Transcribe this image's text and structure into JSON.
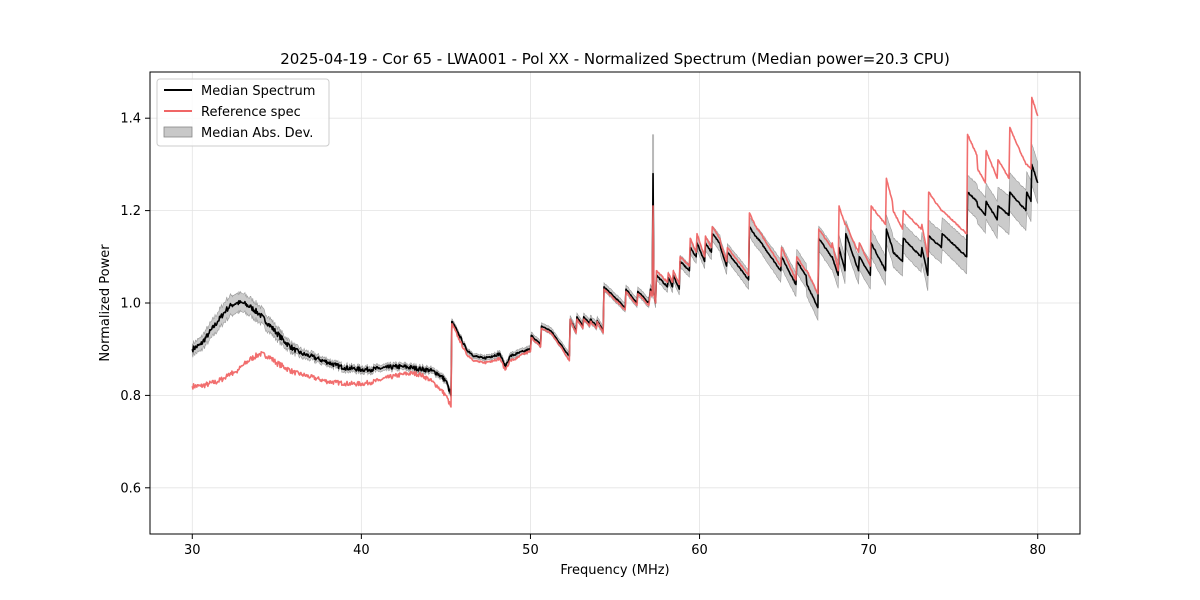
{
  "chart_data": {
    "type": "line",
    "title": "2025-04-19 - Cor 65 - LWA001 - Pol XX - Normalized Spectrum (Median power=20.3 CPU)",
    "xlabel": "Frequency (MHz)",
    "ylabel": "Normalized Power",
    "xlim": [
      27.5,
      82.5
    ],
    "ylim": [
      0.5,
      1.5
    ],
    "xticks": [
      30,
      40,
      50,
      60,
      70,
      80
    ],
    "yticks": [
      0.6,
      0.8,
      1.0,
      1.2,
      1.4
    ],
    "xtick_labels": [
      "30",
      "40",
      "50",
      "60",
      "70",
      "80"
    ],
    "ytick_labels": [
      "0.6",
      "0.8",
      "1.0",
      "1.2",
      "1.4"
    ],
    "grid": true,
    "legend": {
      "position": "top-left",
      "entries": [
        {
          "label": "Median Spectrum",
          "color": "#000000",
          "kind": "line"
        },
        {
          "label": "Reference spec",
          "color": "#f06666",
          "kind": "line"
        },
        {
          "label": "Median Abs. Dev.",
          "color": "#c8c8c8",
          "kind": "band"
        }
      ]
    },
    "series": [
      {
        "name": "Median Spectrum",
        "color": "#000000",
        "x": [
          30.0,
          30.5,
          31.0,
          31.5,
          32.0,
          32.3,
          32.6,
          33.0,
          33.5,
          34.0,
          34.5,
          35.0,
          35.5,
          36.0,
          36.5,
          37.0,
          37.5,
          38.0,
          38.5,
          39.0,
          39.5,
          40.0,
          40.5,
          41.0,
          41.5,
          42.0,
          42.5,
          43.0,
          43.5,
          44.0,
          44.5,
          45.0,
          45.3,
          45.35,
          45.8,
          46.2,
          46.7,
          47.2,
          47.7,
          48.2,
          48.5,
          48.8,
          49.2,
          49.6,
          50.0,
          50.05,
          50.6,
          50.65,
          51.2,
          51.8,
          52.3,
          52.35,
          52.7,
          52.75,
          53.1,
          53.15,
          53.5,
          53.55,
          53.9,
          53.95,
          54.3,
          54.35,
          55.6,
          55.65,
          56.3,
          56.35,
          57.0,
          57.1,
          57.2,
          57.25,
          57.3,
          57.4,
          57.45,
          58.1,
          58.15,
          58.4,
          58.45,
          58.8,
          58.85,
          59.4,
          59.45,
          59.8,
          59.85,
          60.3,
          60.35,
          60.7,
          60.75,
          61.2,
          61.25,
          61.6,
          61.65,
          62.9,
          62.95,
          63.4,
          63.45,
          64.8,
          64.85,
          65.7,
          65.75,
          66.3,
          66.35,
          67.0,
          67.05,
          67.8,
          67.85,
          68.2,
          68.25,
          68.6,
          68.65,
          69.4,
          69.45,
          70.1,
          70.15,
          71.0,
          71.05,
          71.4,
          71.45,
          72.0,
          72.05,
          73.1,
          73.15,
          73.5,
          73.55,
          74.3,
          74.35,
          75.8,
          75.85,
          76.4,
          76.45,
          76.9,
          76.95,
          77.6,
          77.65,
          78.3,
          78.35,
          79.3,
          79.35,
          79.6,
          79.65,
          80.0
        ],
        "y": [
          0.9,
          0.91,
          0.935,
          0.96,
          0.985,
          0.995,
          1.0,
          1.0,
          0.99,
          0.975,
          0.955,
          0.935,
          0.915,
          0.9,
          0.89,
          0.885,
          0.878,
          0.872,
          0.865,
          0.86,
          0.858,
          0.856,
          0.856,
          0.858,
          0.86,
          0.862,
          0.862,
          0.86,
          0.857,
          0.855,
          0.848,
          0.832,
          0.8,
          0.96,
          0.93,
          0.9,
          0.885,
          0.88,
          0.885,
          0.89,
          0.862,
          0.885,
          0.89,
          0.895,
          0.9,
          0.93,
          0.91,
          0.95,
          0.94,
          0.91,
          0.885,
          0.965,
          0.94,
          0.97,
          0.95,
          0.97,
          0.955,
          0.965,
          0.95,
          0.962,
          0.94,
          1.035,
          0.99,
          1.03,
          1.0,
          1.025,
          1.0,
          1.03,
          1.02,
          1.28,
          1.02,
          1.0,
          1.06,
          1.035,
          1.055,
          1.035,
          1.06,
          1.03,
          1.09,
          1.07,
          1.12,
          1.1,
          1.13,
          1.09,
          1.13,
          1.11,
          1.15,
          1.13,
          1.12,
          1.08,
          1.11,
          1.05,
          1.165,
          1.14,
          1.14,
          1.07,
          1.1,
          1.04,
          1.09,
          1.06,
          1.04,
          0.99,
          1.14,
          1.1,
          1.1,
          1.06,
          1.12,
          1.07,
          1.15,
          1.07,
          1.1,
          1.06,
          1.13,
          1.07,
          1.16,
          1.12,
          1.11,
          1.09,
          1.14,
          1.1,
          1.12,
          1.06,
          1.145,
          1.12,
          1.15,
          1.1,
          1.24,
          1.22,
          1.21,
          1.19,
          1.22,
          1.18,
          1.21,
          1.19,
          1.24,
          1.2,
          1.24,
          1.22,
          1.3,
          1.26
        ]
      },
      {
        "name": "Reference spec",
        "color": "#f06666",
        "x": [
          30.0,
          30.5,
          31.0,
          31.5,
          32.0,
          32.5,
          33.0,
          33.5,
          34.0,
          34.5,
          35.0,
          35.5,
          36.0,
          36.5,
          37.0,
          37.5,
          38.0,
          38.5,
          39.0,
          39.5,
          40.0,
          40.5,
          41.0,
          41.5,
          42.0,
          42.5,
          43.0,
          43.5,
          44.0,
          44.5,
          45.0,
          45.3,
          45.35,
          45.8,
          46.2,
          46.7,
          47.2,
          47.7,
          48.2,
          48.5,
          48.8,
          49.2,
          49.6,
          50.0,
          50.05,
          50.6,
          50.65,
          51.2,
          51.8,
          52.3,
          52.35,
          52.7,
          52.75,
          53.1,
          53.15,
          53.5,
          53.55,
          53.9,
          53.95,
          54.3,
          54.35,
          55.6,
          55.65,
          56.3,
          56.35,
          57.0,
          57.1,
          57.2,
          57.25,
          57.3,
          57.4,
          57.45,
          58.1,
          58.15,
          58.4,
          58.45,
          58.8,
          58.85,
          59.4,
          59.45,
          59.8,
          59.85,
          60.3,
          60.35,
          60.7,
          60.75,
          61.2,
          61.25,
          61.6,
          61.65,
          62.9,
          62.95,
          63.4,
          63.45,
          64.8,
          64.85,
          65.7,
          65.75,
          66.3,
          66.35,
          67.0,
          67.05,
          67.8,
          67.85,
          68.2,
          68.25,
          68.6,
          68.65,
          69.4,
          69.45,
          70.1,
          70.15,
          71.0,
          71.05,
          71.4,
          71.45,
          72.0,
          72.05,
          73.1,
          73.15,
          73.5,
          73.55,
          74.3,
          74.35,
          75.8,
          75.85,
          76.4,
          76.45,
          76.9,
          76.95,
          77.6,
          77.65,
          78.3,
          78.35,
          79.3,
          79.35,
          79.6,
          79.65,
          80.0
        ],
        "y": [
          0.82,
          0.82,
          0.825,
          0.83,
          0.84,
          0.85,
          0.865,
          0.88,
          0.89,
          0.885,
          0.87,
          0.86,
          0.85,
          0.845,
          0.84,
          0.835,
          0.83,
          0.828,
          0.826,
          0.825,
          0.825,
          0.828,
          0.832,
          0.838,
          0.842,
          0.846,
          0.848,
          0.845,
          0.835,
          0.82,
          0.8,
          0.775,
          0.955,
          0.92,
          0.89,
          0.875,
          0.87,
          0.875,
          0.88,
          0.855,
          0.875,
          0.88,
          0.89,
          0.895,
          0.925,
          0.905,
          0.945,
          0.935,
          0.905,
          0.875,
          0.965,
          0.935,
          0.965,
          0.945,
          0.965,
          0.95,
          0.96,
          0.945,
          0.96,
          0.935,
          1.03,
          0.985,
          1.025,
          0.995,
          1.02,
          0.995,
          1.025,
          1.015,
          1.21,
          1.02,
          1.0,
          1.07,
          1.045,
          1.065,
          1.045,
          1.07,
          1.04,
          1.1,
          1.08,
          1.14,
          1.11,
          1.15,
          1.1,
          1.145,
          1.12,
          1.165,
          1.14,
          1.13,
          1.09,
          1.12,
          1.06,
          1.195,
          1.16,
          1.16,
          1.08,
          1.12,
          1.05,
          1.1,
          1.07,
          1.07,
          1.02,
          1.16,
          1.12,
          1.13,
          1.07,
          1.21,
          1.17,
          1.17,
          1.11,
          1.13,
          1.08,
          1.21,
          1.17,
          1.27,
          1.22,
          1.2,
          1.16,
          1.2,
          1.16,
          1.17,
          1.1,
          1.24,
          1.2,
          1.2,
          1.15,
          1.365,
          1.32,
          1.29,
          1.26,
          1.33,
          1.27,
          1.31,
          1.27,
          1.38,
          1.3,
          1.3,
          1.29,
          1.445,
          1.405
        ]
      },
      {
        "name": "Median Abs. Dev.",
        "color": "#c8c8c8",
        "kind": "band",
        "half_width_x": [
          30,
          32,
          34,
          36,
          38,
          40,
          45,
          46,
          50,
          57.2,
          60,
          65,
          70,
          75,
          80
        ],
        "half_width": [
          0.012,
          0.022,
          0.018,
          0.01,
          0.007,
          0.007,
          0.006,
          0.005,
          0.007,
          0.01,
          0.015,
          0.025,
          0.03,
          0.035,
          0.045
        ],
        "spike_x": 57.25,
        "spike_range": [
          1.03,
          1.365
        ]
      }
    ]
  }
}
